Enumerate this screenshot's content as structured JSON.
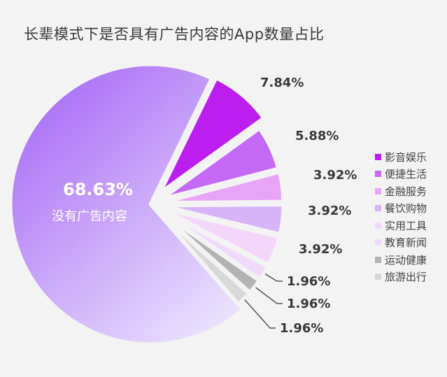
{
  "chart_data": {
    "type": "pie",
    "title": "长辈模式下是否具有广告内容的App数量占比",
    "slices": [
      {
        "name": "影音娱乐",
        "value": 7.84,
        "label": "7.84%",
        "color": "#bc1ef0"
      },
      {
        "name": "便捷生活",
        "value": 5.88,
        "label": "5.88%",
        "color": "#c56af7"
      },
      {
        "name": "金融服务",
        "value": 3.92,
        "label": "3.92%",
        "color": "#e8a4f6"
      },
      {
        "name": "餐饮购物",
        "value": 3.92,
        "label": "3.92%",
        "color": "#d7b3f8"
      },
      {
        "name": "实用工具",
        "value": 3.92,
        "label": "3.92%",
        "color": "#f5d6fb"
      },
      {
        "name": "教育新闻",
        "value": 1.96,
        "label": "1.96%",
        "color": "#efdafc"
      },
      {
        "name": "运动健康",
        "value": 1.96,
        "label": "1.96%",
        "color": "#b3b3b3"
      },
      {
        "name": "旅游出行",
        "value": 1.96,
        "label": "1.96%",
        "color": "#d8d8d8"
      }
    ],
    "main_slice": {
      "value": 68.63,
      "label": "68.63%",
      "name": "没有广告内容",
      "color_start": "#ad74f5",
      "color_end": "#e9e0fd"
    },
    "legend_position": "right"
  }
}
